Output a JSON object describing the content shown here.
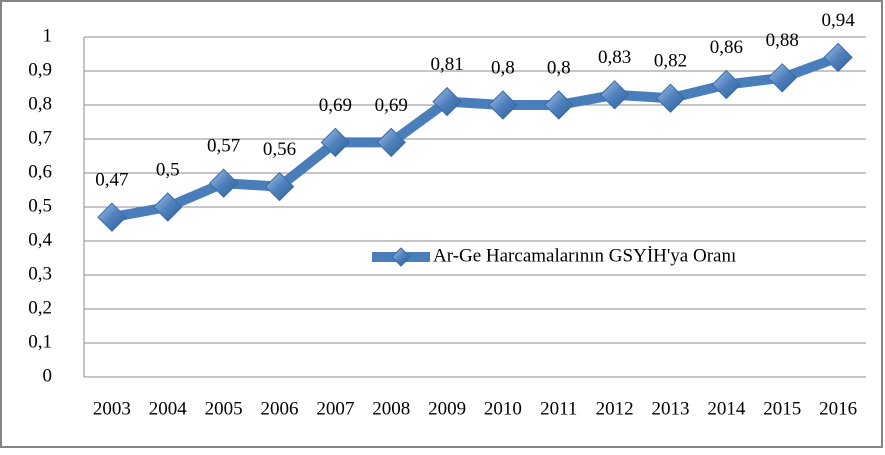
{
  "chart_data": {
    "type": "line",
    "categories": [
      "2003",
      "2004",
      "2005",
      "2006",
      "2007",
      "2008",
      "2009",
      "2010",
      "2011",
      "2012",
      "2013",
      "2014",
      "2015",
      "2016"
    ],
    "series": [
      {
        "name": "Ar-Ge Harcamalarının GSYİH'ya Oranı",
        "color": "#4a7ebb",
        "values": [
          0.47,
          0.5,
          0.57,
          0.56,
          0.69,
          0.69,
          0.81,
          0.8,
          0.8,
          0.83,
          0.82,
          0.86,
          0.88,
          0.94
        ],
        "value_labels": [
          "0,47",
          "0,5",
          "0,57",
          "0,56",
          "0,69",
          "0,69",
          "0,81",
          "0,8",
          "0,8",
          "0,83",
          "0,82",
          "0,86",
          "0,88",
          "0,94"
        ]
      }
    ],
    "ylim": [
      0,
      1
    ],
    "yticks": [
      0,
      {
        "value": 0.1,
        "label": "0,1"
      },
      {
        "value": 0.2,
        "label": "0,2"
      },
      {
        "value": 0.3,
        "label": "0,3"
      },
      {
        "value": 0.4,
        "label": "0,4"
      },
      {
        "value": 0.5,
        "label": "0,5"
      },
      {
        "value": 0.6,
        "label": "0,6"
      },
      {
        "value": 0.7,
        "label": "0,7"
      },
      {
        "value": 0.8,
        "label": "0,8"
      },
      {
        "value": 0.9,
        "label": "0,9"
      },
      1
    ],
    "grid": true,
    "legend": "center"
  }
}
